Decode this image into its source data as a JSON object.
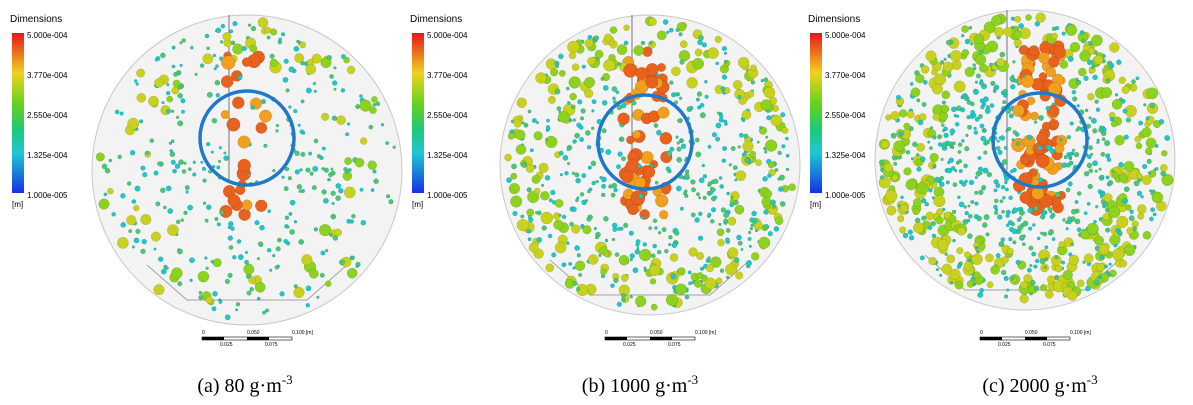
{
  "panels": [
    {
      "legend": {
        "title": "Dimensions",
        "ticks": [
          "5.000e-004",
          "3.770e-004",
          "2.550e-004",
          "1.325e-004",
          "1.000e-005"
        ],
        "unit": "[m]"
      },
      "scale": {
        "ticks": [
          "0",
          "0.050",
          "0.100 [m]"
        ],
        "sub": [
          "0.025",
          "0.075"
        ]
      },
      "caption": {
        "text": "(a) 80 g·m",
        "sup": "-3"
      }
    },
    {
      "legend": {
        "title": "Dimensions",
        "ticks": [
          "5.000e-004",
          "3.770e-004",
          "2.550e-004",
          "1.325e-004",
          "1.000e-005"
        ],
        "unit": "[m]"
      },
      "scale": {
        "ticks": [
          "0",
          "0.050",
          "0.100 [m]"
        ],
        "sub": [
          "0.025",
          "0.075"
        ]
      },
      "caption": {
        "text": "(b) 1000 g·m",
        "sup": "-3"
      }
    },
    {
      "legend": {
        "title": "Dimensions",
        "ticks": [
          "5.000e-004",
          "3.770e-004",
          "2.550e-004",
          "1.325e-004",
          "1.000e-005"
        ],
        "unit": "[m]"
      },
      "scale": {
        "ticks": [
          "0",
          "0.050",
          "0.100 [m]"
        ],
        "sub": [
          "0.025",
          "0.075"
        ]
      },
      "caption": {
        "text": "(c) 2000 g·m",
        "sup": "-3"
      }
    }
  ]
}
